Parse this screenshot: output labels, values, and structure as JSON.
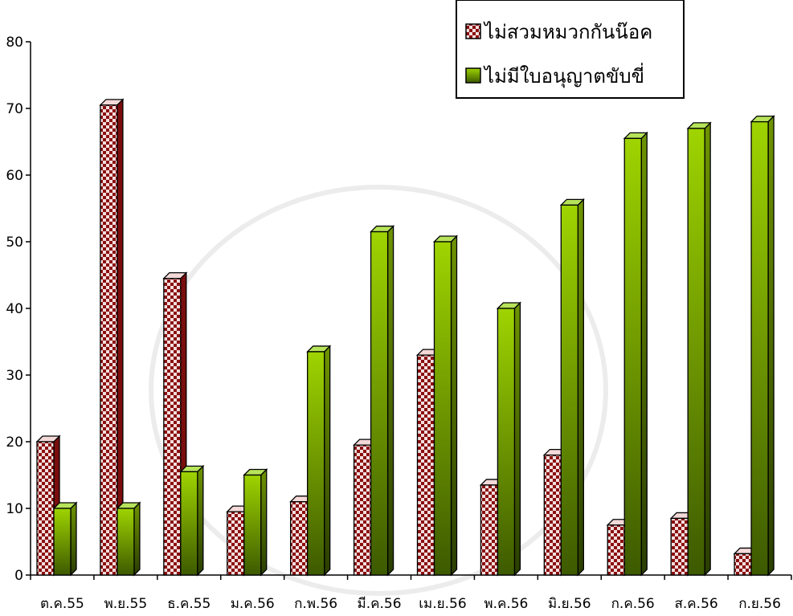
{
  "chart_data": {
    "type": "bar",
    "categories": [
      "ต.ค.55",
      "พ.ย.55",
      "ธ.ค.55",
      "ม.ค.56",
      "ก.พ.56",
      "มี.ค.56",
      "เม.ย.56",
      "พ.ค.56",
      "มิ.ย.56",
      "ก.ค.56",
      "ส.ค.56",
      "ก.ย.56"
    ],
    "series": [
      {
        "name": "ไม่สวมหมวกกันน๊อค",
        "values": [
          20,
          70.5,
          44.5,
          9.5,
          11,
          19.5,
          33,
          13.5,
          18,
          7.5,
          8.5,
          3.2
        ],
        "color": "#9b1c1c"
      },
      {
        "name": "ไม่มีใบอนุญาตขับขี่",
        "values": [
          10,
          10,
          15.5,
          15,
          33.5,
          51.5,
          50,
          40,
          55.5,
          65.5,
          67,
          68
        ],
        "color": "#7fb800"
      }
    ],
    "yticks": [
      "0",
      "10",
      "20",
      "30",
      "40",
      "50",
      "60",
      "70",
      "80"
    ],
    "ylim": [
      0,
      80
    ],
    "legend_position": "top-right",
    "grid": false
  }
}
